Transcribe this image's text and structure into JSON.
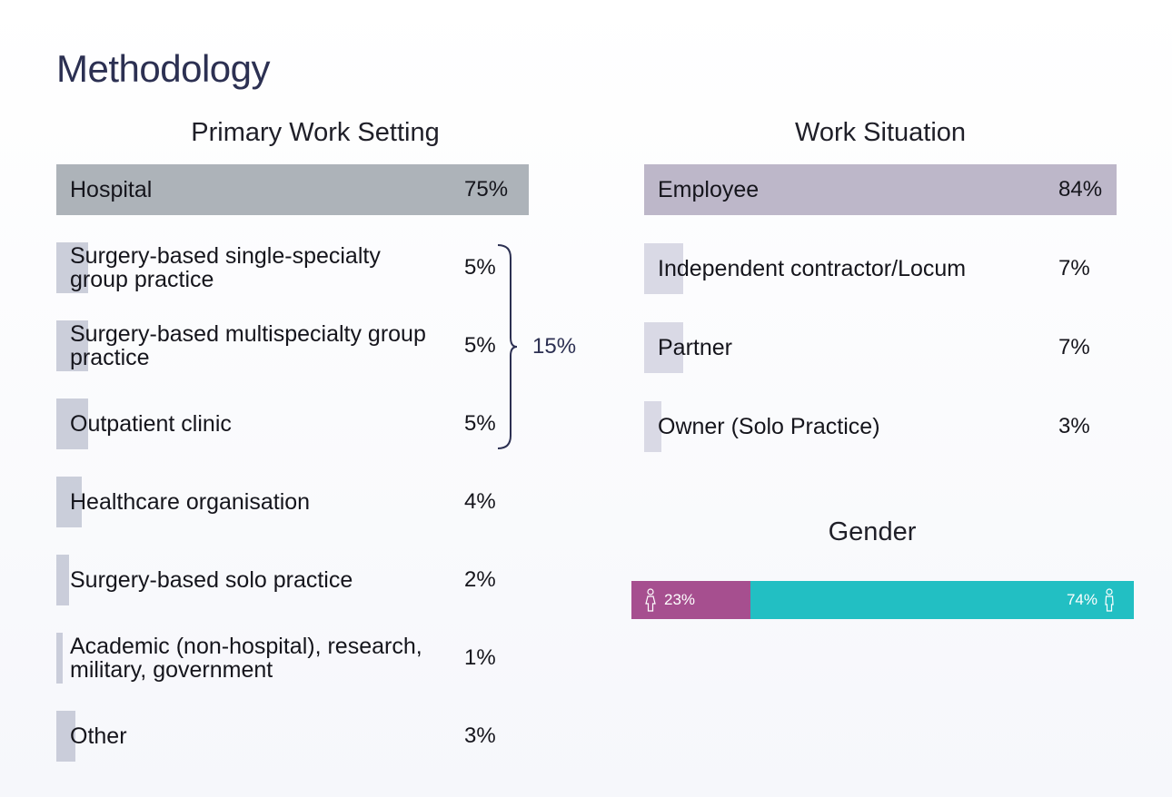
{
  "page_title": "Methodology",
  "chart_data": [
    {
      "type": "bar",
      "title": "Primary Work Setting",
      "categories": [
        "Hospital",
        "Surgery-based single-specialty group practice",
        "Surgery-based multispecialty group practice",
        "Outpatient clinic",
        "Healthcare organisation",
        "Surgery-based solo practice",
        "Academic (non-hospital), research, military, government",
        "Other"
      ],
      "values": [
        75,
        5,
        5,
        5,
        4,
        2,
        1,
        3
      ],
      "labels": [
        "75%",
        "5%",
        "5%",
        "5%",
        "4%",
        "2%",
        "1%",
        "3%"
      ],
      "group_bracket": {
        "categories": [
          "Surgery-based single-specialty group practice",
          "Surgery-based multispecialty group practice",
          "Outpatient clinic"
        ],
        "label": "15%"
      },
      "orientation": "horizontal",
      "xlim": [
        0,
        75
      ],
      "colors": {
        "top": "#adb3b9",
        "rest": "#c2c5d4"
      }
    },
    {
      "type": "bar",
      "title": "Work Situation",
      "categories": [
        "Employee",
        "Independent contractor/Locum",
        "Partner",
        "Owner (Solo Practice)"
      ],
      "values": [
        84,
        7,
        7,
        3
      ],
      "labels": [
        "84%",
        "7%",
        "7%",
        "3%"
      ],
      "orientation": "horizontal",
      "xlim": [
        0,
        84
      ],
      "colors": {
        "top": "#bdb7c9",
        "rest": "#d2d2e0"
      }
    },
    {
      "type": "bar",
      "title": "Gender",
      "stacked": true,
      "series": [
        {
          "values": [
            23
          ],
          "label": "23%",
          "color": "#a64f8f",
          "icon": "female-icon"
        },
        {
          "values": [
            74
          ],
          "label": "74%",
          "color": "#22bfc3",
          "icon": "male-icon"
        }
      ],
      "xlim": [
        0,
        97
      ]
    }
  ]
}
